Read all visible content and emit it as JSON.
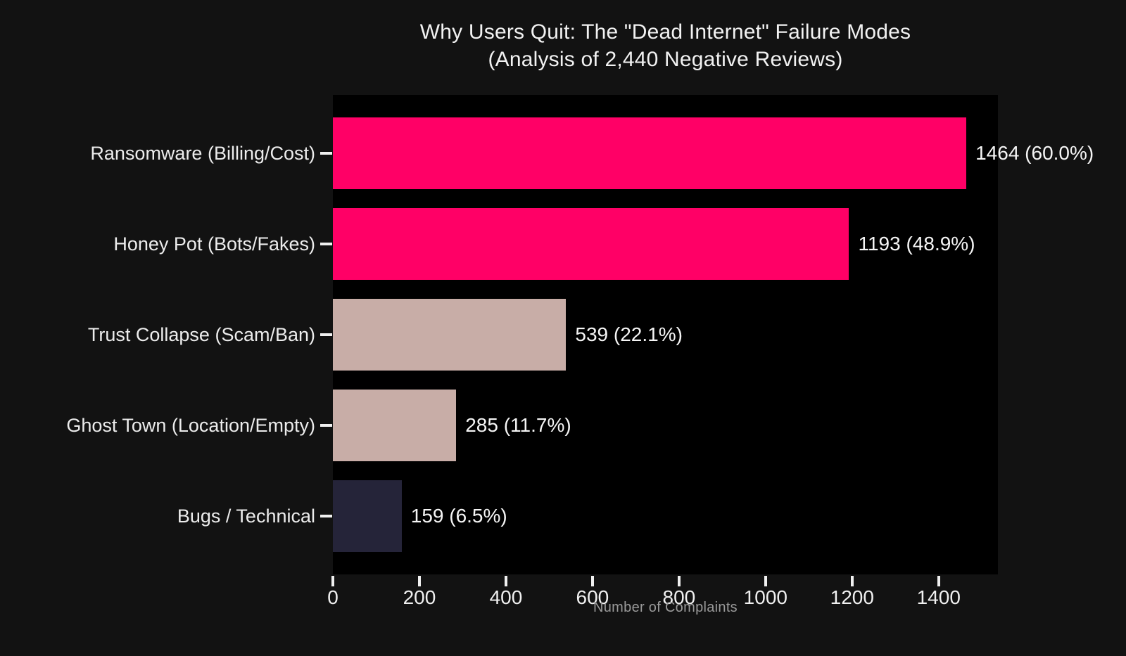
{
  "title": {
    "line1": "Why Users Quit: The \"Dead Internet\" Failure Modes",
    "line2": "(Analysis of 2,440 Negative Reviews)"
  },
  "chart_data": {
    "type": "bar",
    "orientation": "horizontal",
    "title": "Why Users Quit: The \"Dead Internet\" Failure Modes (Analysis of 2,440 Negative Reviews)",
    "categories": [
      "Ransomware (Billing/Cost)",
      "Honey Pot (Bots/Fakes)",
      "Trust Collapse (Scam/Ban)",
      "Ghost Town (Location/Empty)",
      "Bugs / Technical"
    ],
    "values": [
      1464,
      1193,
      539,
      285,
      159
    ],
    "percentages": [
      60.0,
      48.9,
      22.1,
      11.7,
      6.5
    ],
    "bar_labels": [
      "1464 (60.0%)",
      "1193 (48.9%)",
      "539 (22.1%)",
      "285 (11.7%)",
      "159 (6.5%)"
    ],
    "bar_colors": [
      "#ff0066",
      "#ff0066",
      "#c8ada7",
      "#c8ada7",
      "#252439"
    ],
    "total_reviews": 2440,
    "xlabel": "Number of Complaints",
    "x_ticks": [
      0,
      200,
      400,
      600,
      800,
      1000,
      1200,
      1400
    ],
    "xlim": [
      0,
      1537
    ],
    "grid": false,
    "legend": "none",
    "plot_background": "#000000",
    "figure_background": "#121212",
    "text_color": "#f2f2f2",
    "muted_text_color": "#9a9a9a"
  }
}
